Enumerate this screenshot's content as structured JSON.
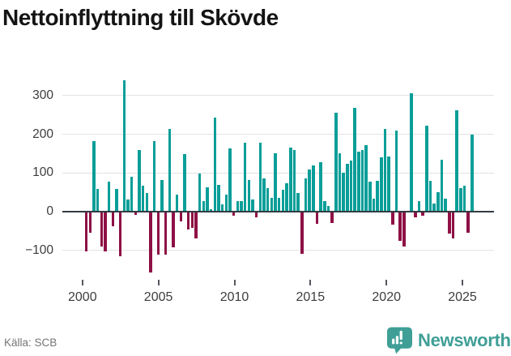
{
  "title": "Nettoinflyttning till Skövde",
  "source": "Källa: SCB",
  "brand": {
    "name": "Newsworthy",
    "color": "#3F9F97"
  },
  "colors": {
    "positive_bar": "#0A9E98",
    "negative_bar": "#8E1045",
    "gridline": "#E3E3E3",
    "zero_line": "#343B42",
    "axis_text": "#3D3D3D"
  },
  "chart_data": {
    "type": "bar",
    "title": "Nettoinflyttning till Skövde",
    "start_quarter": "2000Q1",
    "quarters_per_year": 4,
    "x_tick_labels": [
      "2000",
      "2005",
      "2010",
      "2015",
      "2020",
      "2025"
    ],
    "y_ticks": [
      300,
      200,
      100,
      0,
      -100
    ],
    "y_tick_labels": [
      "300",
      "200",
      "100",
      "0",
      "−100"
    ],
    "ylim": [
      -160,
      345
    ],
    "grid": true,
    "legend": false,
    "series": [
      {
        "name": "Nettoinflyttning",
        "values": [
          -100,
          -51,
          181,
          56,
          -88,
          -100,
          75,
          -36,
          56,
          -112,
          337,
          30,
          89,
          -5,
          158,
          65,
          47,
          -154,
          181,
          -109,
          80,
          -109,
          211,
          -90,
          42,
          -22,
          146,
          -43,
          -40,
          -67,
          97,
          26,
          61,
          5,
          240,
          68,
          16,
          42,
          162,
          -8,
          26,
          25,
          177,
          80,
          30,
          -12,
          176,
          84,
          58,
          33,
          148,
          33,
          54,
          72,
          163,
          158,
          47,
          -107,
          83,
          106,
          117,
          -28,
          125,
          26,
          12,
          -26,
          253,
          149,
          99,
          121,
          130,
          266,
          153,
          158,
          169,
          75,
          32,
          78,
          139,
          212,
          140,
          -31,
          207,
          -74,
          -87,
          0,
          303,
          -13,
          25,
          -9,
          221,
          78,
          19,
          49,
          132,
          31,
          -54,
          -66,
          259,
          59,
          65,
          -52,
          198
        ]
      }
    ]
  }
}
